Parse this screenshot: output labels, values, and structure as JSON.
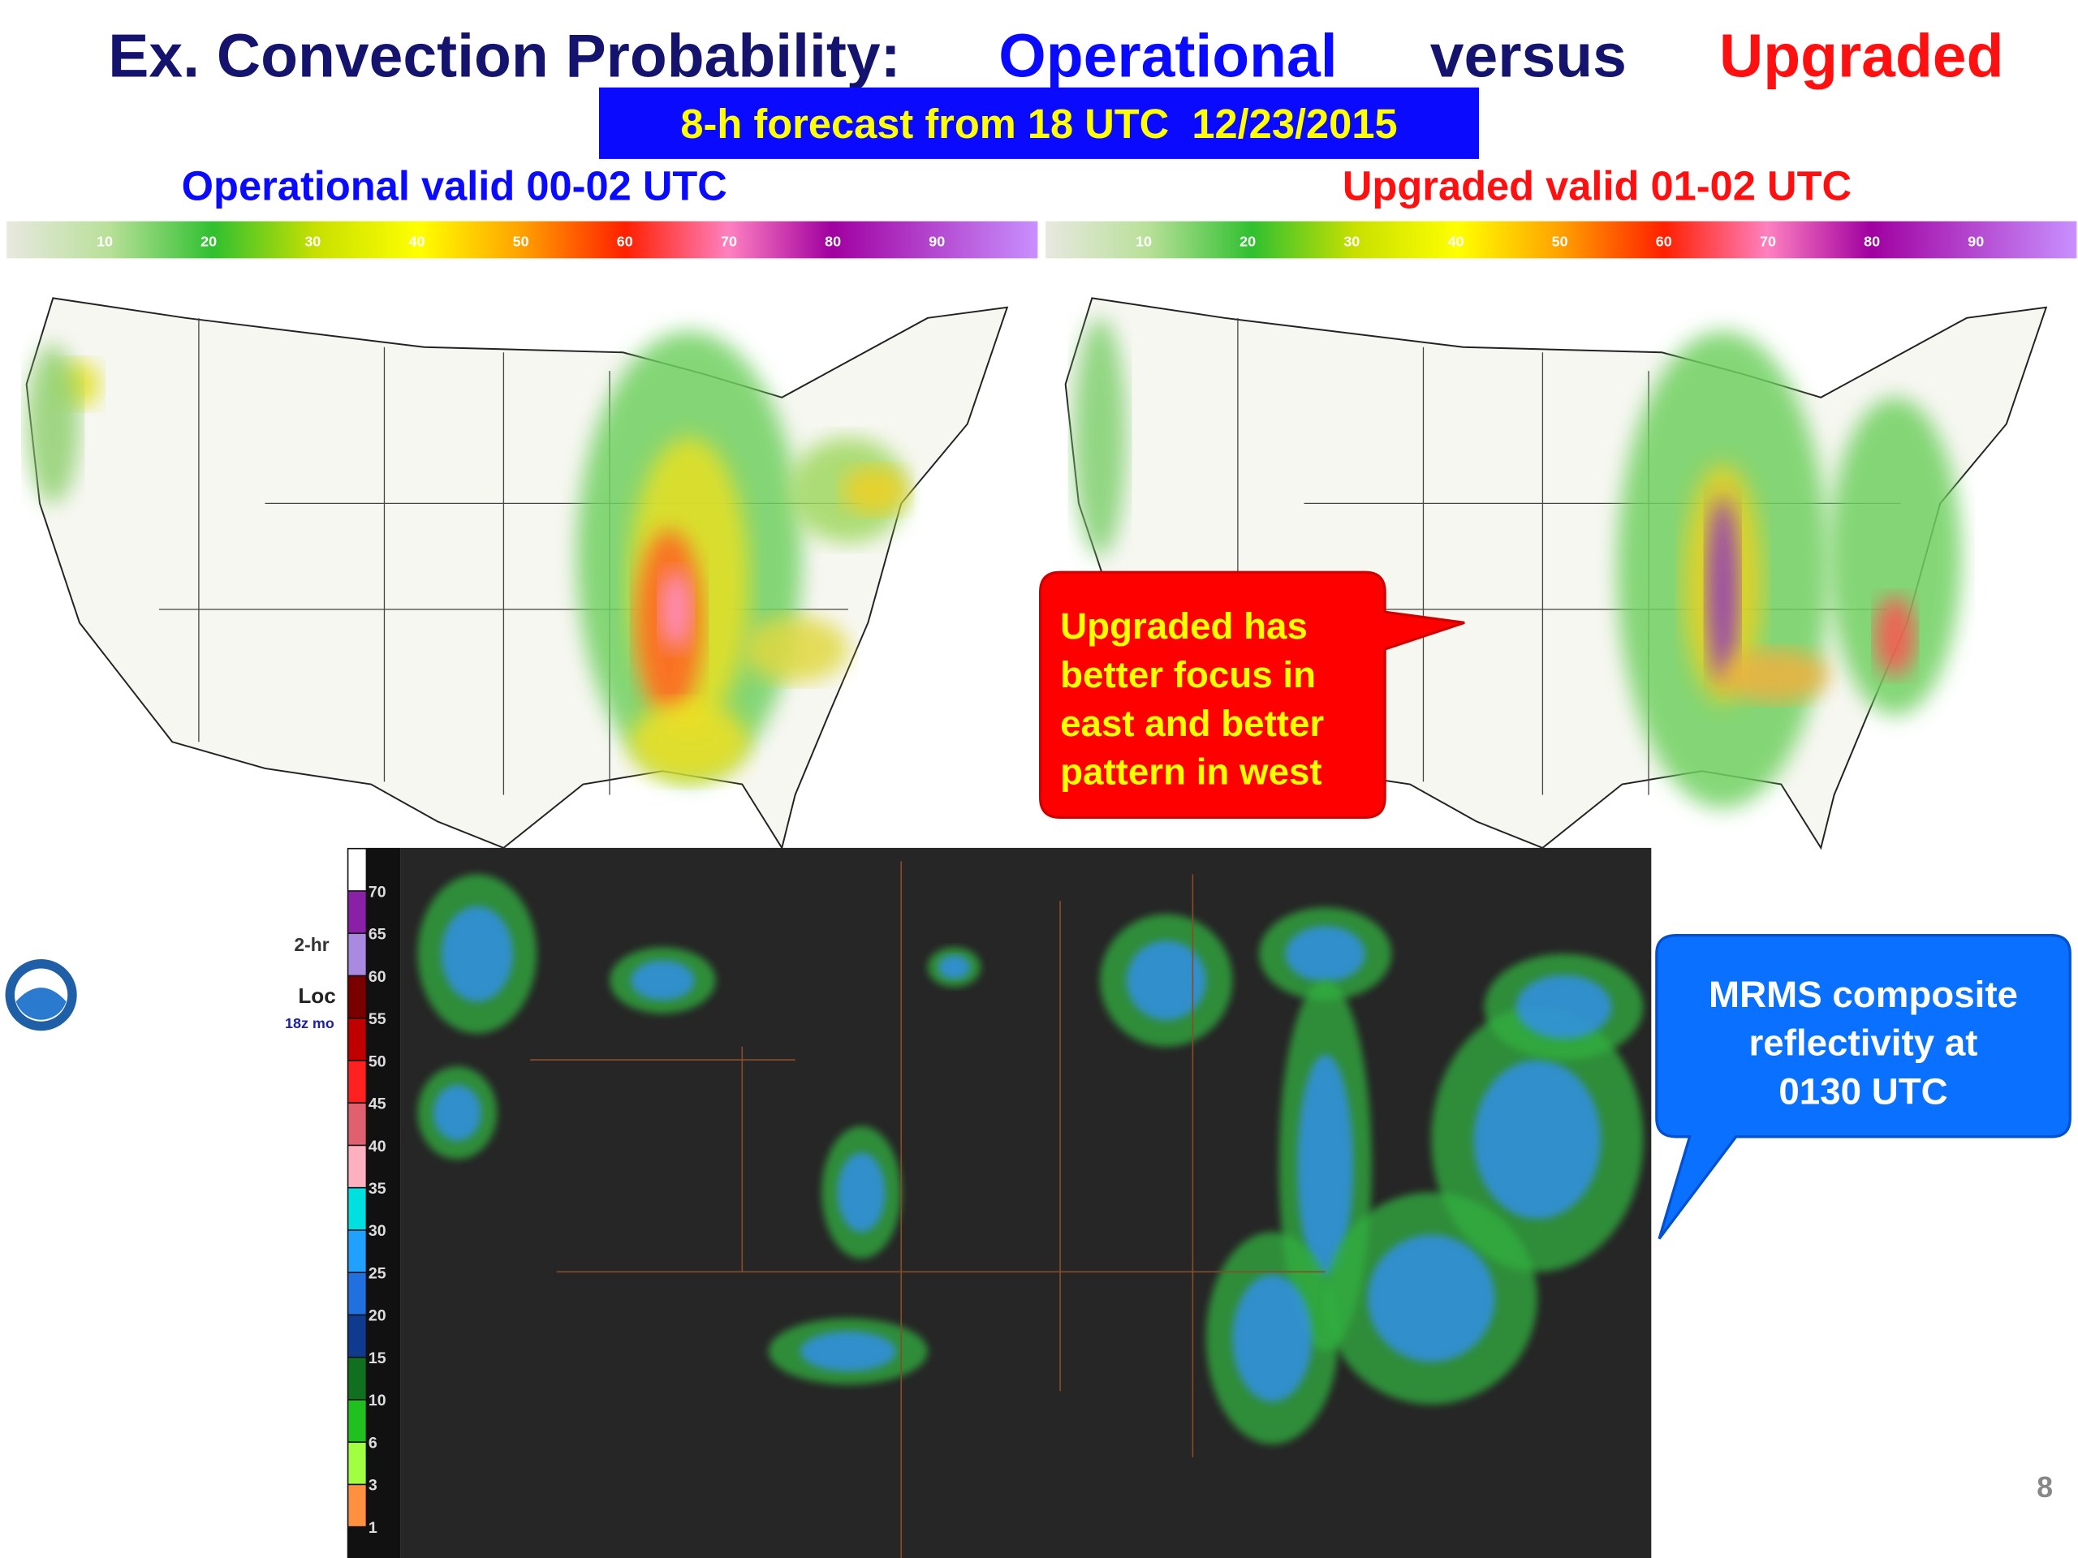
{
  "title": {
    "lead": "Ex. Convection Probability:",
    "operational": "Operational",
    "versus": "versus",
    "upgraded": "Upgraded"
  },
  "subtitle": "8-h forecast from 18 UTC  12/23/2015",
  "panels": [
    {
      "label": "Operational valid 00-02 UTC",
      "colorbar_ticks": [
        10,
        20,
        30,
        40,
        50,
        60,
        70,
        80,
        90
      ]
    },
    {
      "label": "Upgraded valid 01-02 UTC",
      "colorbar_ticks": [
        10,
        20,
        30,
        40,
        50,
        60,
        70,
        80,
        90
      ]
    }
  ],
  "red_callout": {
    "lines": [
      "Upgraded has",
      "better focus in",
      "east and better",
      "pattern in west"
    ]
  },
  "blue_callout": {
    "lines": [
      "MRMS composite",
      "reflectivity at",
      "0130 UTC"
    ]
  },
  "radar_legend": {
    "labels": [
      70,
      65,
      60,
      55,
      50,
      45,
      40,
      35,
      30,
      25,
      20,
      15,
      10,
      6,
      3,
      1
    ],
    "colors": [
      "#ffffff",
      "#8a1fa8",
      "#a98ae0",
      "#7a0000",
      "#c00000",
      "#ff2020",
      "#e06070",
      "#ffb0c0",
      "#00e0e0",
      "#20a0ff",
      "#2070e0",
      "#103a90",
      "#107020",
      "#20c020",
      "#a0ff40",
      "#ff9040"
    ]
  },
  "map_fragments": {
    "time_label": "2-hr",
    "loc": "Loc",
    "run": "18z mo"
  },
  "page_number": "8"
}
